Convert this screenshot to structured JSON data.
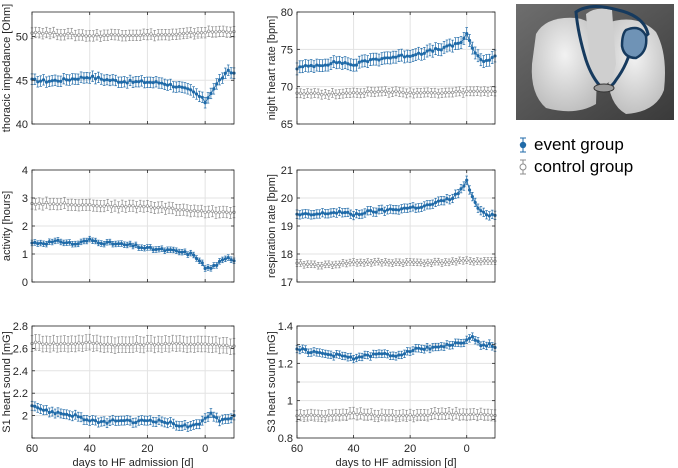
{
  "chart_data": [
    {
      "type": "line",
      "ylabel": "thoracic impedance [Ohm]",
      "xlabel": "",
      "ylim": [
        40,
        52.8
      ],
      "yticks": [
        40,
        45,
        50
      ],
      "yticklabels": [
        "40",
        "45",
        "50"
      ],
      "xlim": [
        60,
        -10
      ],
      "xticks": [
        60,
        40,
        20,
        0
      ],
      "xticklabels": [
        "",
        "",
        "",
        ""
      ],
      "series": [
        {
          "name": "event group",
          "x": [
            60,
            55,
            50,
            45,
            40,
            35,
            30,
            25,
            20,
            15,
            10,
            5,
            3,
            1,
            0,
            -2,
            -5,
            -8,
            -10
          ],
          "values": [
            45.0,
            44.9,
            45.0,
            45.2,
            45.4,
            45.1,
            44.9,
            44.8,
            44.8,
            44.7,
            44.3,
            43.8,
            43.4,
            42.9,
            42.5,
            43.6,
            45.0,
            46.0,
            45.8
          ],
          "err": 0.6
        },
        {
          "name": "control group",
          "x": [
            60,
            50,
            40,
            30,
            20,
            10,
            0,
            -10
          ],
          "values": [
            50.5,
            50.3,
            50.1,
            50.2,
            50.2,
            50.2,
            50.5,
            50.6
          ],
          "err": 0.6
        }
      ]
    },
    {
      "type": "line",
      "ylabel": "night heart rate [bpm]",
      "xlabel": "",
      "ylim": [
        65,
        80
      ],
      "yticks": [
        65,
        70,
        75,
        80
      ],
      "yticklabels": [
        "65",
        "70",
        "75",
        "80"
      ],
      "xlim": [
        60,
        -10
      ],
      "xticks": [
        60,
        40,
        20,
        0
      ],
      "xticklabels": [
        "",
        "",
        "",
        ""
      ],
      "series": [
        {
          "name": "event group",
          "x": [
            60,
            55,
            50,
            45,
            40,
            35,
            30,
            25,
            20,
            15,
            10,
            5,
            2,
            0,
            -1,
            -3,
            -5,
            -8,
            -10
          ],
          "values": [
            72.5,
            72.8,
            73.0,
            73.3,
            72.9,
            73.5,
            73.8,
            74.0,
            74.2,
            74.6,
            75.0,
            75.5,
            76.0,
            77.0,
            76.0,
            74.5,
            73.5,
            73.6,
            74.0
          ],
          "err": 0.8
        },
        {
          "name": "control group",
          "x": [
            60,
            50,
            40,
            30,
            20,
            10,
            0,
            -10
          ],
          "values": [
            69.2,
            69.0,
            69.2,
            69.3,
            69.2,
            69.1,
            69.3,
            69.4
          ],
          "err": 0.6
        }
      ]
    },
    {
      "type": "line",
      "ylabel": "activity [hours]",
      "xlabel": "",
      "ylim": [
        0,
        4
      ],
      "yticks": [
        0,
        1,
        2,
        3,
        4
      ],
      "yticklabels": [
        "0",
        "1",
        "2",
        "3",
        "4"
      ],
      "xlim": [
        60,
        -10
      ],
      "xticks": [
        60,
        40,
        20,
        0
      ],
      "xticklabels": [
        "",
        "",
        "",
        ""
      ],
      "series": [
        {
          "name": "event group",
          "x": [
            60,
            55,
            50,
            45,
            40,
            35,
            30,
            25,
            20,
            15,
            10,
            5,
            2,
            0,
            -2,
            -5,
            -8,
            -10
          ],
          "values": [
            1.4,
            1.4,
            1.45,
            1.35,
            1.5,
            1.4,
            1.35,
            1.3,
            1.2,
            1.15,
            1.1,
            1.0,
            0.8,
            0.5,
            0.5,
            0.7,
            0.85,
            0.8
          ],
          "err": 0.1
        },
        {
          "name": "control group",
          "x": [
            60,
            50,
            40,
            30,
            20,
            10,
            0,
            -10
          ],
          "values": [
            2.8,
            2.8,
            2.75,
            2.7,
            2.7,
            2.6,
            2.5,
            2.5
          ],
          "err": 0.2
        }
      ]
    },
    {
      "type": "line",
      "ylabel": "respiration rate [bpm]",
      "xlabel": "",
      "ylim": [
        17,
        21
      ],
      "yticks": [
        17,
        18,
        19,
        20,
        21
      ],
      "yticklabels": [
        "17",
        "18",
        "19",
        "20",
        "21"
      ],
      "xlim": [
        60,
        -10
      ],
      "xticks": [
        60,
        40,
        20,
        0
      ],
      "xticklabels": [
        "",
        "",
        "",
        ""
      ],
      "series": [
        {
          "name": "event group",
          "x": [
            60,
            55,
            50,
            45,
            40,
            35,
            30,
            25,
            20,
            15,
            10,
            5,
            2,
            0,
            -1,
            -3,
            -5,
            -8,
            -10
          ],
          "values": [
            19.4,
            19.4,
            19.45,
            19.5,
            19.4,
            19.5,
            19.55,
            19.6,
            19.65,
            19.7,
            19.85,
            20.0,
            20.3,
            20.6,
            20.3,
            19.8,
            19.5,
            19.4,
            19.4
          ],
          "err": 0.15
        },
        {
          "name": "control group",
          "x": [
            60,
            50,
            40,
            30,
            20,
            10,
            0,
            -10
          ],
          "values": [
            17.65,
            17.6,
            17.7,
            17.7,
            17.7,
            17.7,
            17.75,
            17.75
          ],
          "err": 0.12
        }
      ]
    },
    {
      "type": "line",
      "ylabel": "S1 heart sound [mG]",
      "xlabel": "days to HF admission [d]",
      "ylim": [
        1.8,
        2.8
      ],
      "yticks": [
        1.8,
        2.0,
        2.2,
        2.4,
        2.6,
        2.8
      ],
      "yticklabels": [
        "",
        "2",
        "2.2",
        "2.4",
        "2.6",
        "2.8"
      ],
      "xlim": [
        60,
        -10
      ],
      "xticks": [
        60,
        40,
        20,
        0
      ],
      "xticklabels": [
        "60",
        "40",
        "20",
        "0"
      ],
      "series": [
        {
          "name": "event group",
          "x": [
            60,
            57,
            55,
            50,
            45,
            40,
            35,
            30,
            25,
            20,
            15,
            10,
            5,
            2,
            0,
            -2,
            -5,
            -8,
            -10
          ],
          "values": [
            2.1,
            2.06,
            2.04,
            2.02,
            2.0,
            1.95,
            1.94,
            1.96,
            1.94,
            1.96,
            1.95,
            1.92,
            1.9,
            1.92,
            1.98,
            2.02,
            1.96,
            1.97,
            2.0
          ],
          "err": 0.04
        },
        {
          "name": "control group",
          "x": [
            60,
            50,
            40,
            30,
            20,
            10,
            0,
            -10
          ],
          "values": [
            2.65,
            2.64,
            2.65,
            2.63,
            2.64,
            2.64,
            2.64,
            2.62
          ],
          "err": 0.07
        }
      ]
    },
    {
      "type": "line",
      "ylabel": "S3 heart sound [mG]",
      "xlabel": "days to HF admission [d]",
      "ylim": [
        0.8,
        1.4
      ],
      "yticks": [
        0.8,
        0.9,
        1.0,
        1.1,
        1.2,
        1.3,
        1.4
      ],
      "yticklabels": [
        "0.8",
        "",
        "1",
        "",
        "1.2",
        "",
        "1.4"
      ],
      "xlim": [
        60,
        -10
      ],
      "xticks": [
        60,
        40,
        20,
        0
      ],
      "xticklabels": [
        "60",
        "40",
        "20",
        "0"
      ],
      "series": [
        {
          "name": "event group",
          "x": [
            60,
            55,
            50,
            45,
            40,
            35,
            30,
            25,
            20,
            15,
            10,
            5,
            2,
            0,
            -2,
            -5,
            -8,
            -10
          ],
          "values": [
            1.28,
            1.26,
            1.25,
            1.24,
            1.23,
            1.24,
            1.25,
            1.24,
            1.27,
            1.28,
            1.29,
            1.3,
            1.31,
            1.32,
            1.34,
            1.3,
            1.3,
            1.28
          ],
          "err": 0.02
        },
        {
          "name": "control group",
          "x": [
            60,
            50,
            40,
            30,
            20,
            10,
            0,
            -10
          ],
          "values": [
            0.92,
            0.92,
            0.93,
            0.92,
            0.92,
            0.93,
            0.93,
            0.92
          ],
          "err": 0.03
        }
      ]
    }
  ],
  "legend": {
    "event_label": "event group",
    "control_label": "control group"
  },
  "colors": {
    "event": "#1f6aa8",
    "control": "#8c8c8c",
    "grid": "#e3e3e3",
    "axis": "#262626"
  },
  "thumbnail": {
    "label": "anatomy-thumbnail"
  }
}
